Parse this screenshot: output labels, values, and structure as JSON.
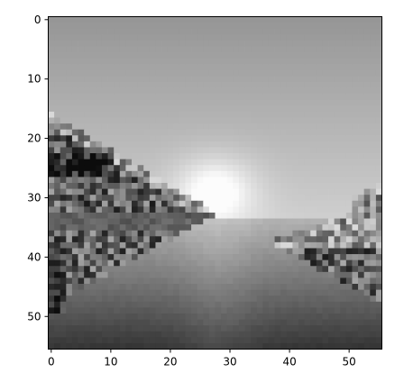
{
  "chart_data": {
    "type": "heatmap",
    "title": "",
    "xlabel": "",
    "ylabel": "",
    "colormap": "gray",
    "grid": false,
    "colorbar": false,
    "legend": false,
    "image_shape": [
      56,
      56
    ],
    "xlim": [
      -0.5,
      55.5
    ],
    "ylim": [
      55.5,
      -0.5
    ],
    "x_ticks": [
      0,
      10,
      20,
      30,
      40,
      50
    ],
    "y_ticks": [
      0,
      10,
      20,
      30,
      40,
      50
    ],
    "x_tick_labels": [
      "0",
      "10",
      "20",
      "30",
      "40",
      "50"
    ],
    "y_tick_labels": [
      "0",
      "10",
      "20",
      "30",
      "40",
      "50"
    ],
    "scene": "grayscale landscape: bright sky with sun near column 28, row 30; dark hills on the left and right; water/road fading to dark at bottom"
  }
}
